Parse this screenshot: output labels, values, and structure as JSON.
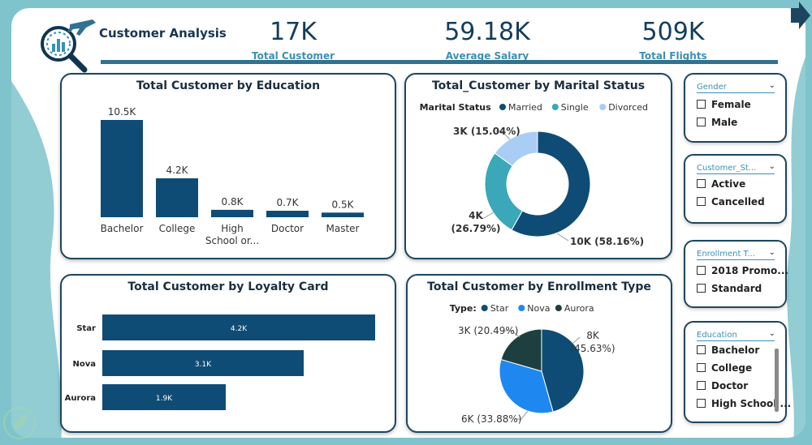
{
  "header": {
    "title": "Customer Analysis",
    "kpis": [
      {
        "value": "17K",
        "label": "Total Customer"
      },
      {
        "value": "59.18K",
        "label": "Average Salary"
      },
      {
        "value": "509K",
        "label": "Total Flights"
      }
    ]
  },
  "colors": {
    "primary": "#0f4c75",
    "married": "#0f4c75",
    "single": "#3aa8b8",
    "divorced": "#a9cdf5",
    "star": "#0f4c75",
    "nova": "#1e88f0",
    "aurora": "#1d3f3f",
    "accent": "#3b90b5"
  },
  "education_chart": {
    "title": "Total Customer by Education",
    "chart_data": {
      "type": "bar",
      "categories": [
        "Bachelor",
        "College",
        "High School or...",
        "Doctor",
        "Master"
      ],
      "category_lines": [
        [
          "Bachelor"
        ],
        [
          "College"
        ],
        [
          "High",
          "School or..."
        ],
        [
          "Doctor"
        ],
        [
          "Master"
        ]
      ],
      "values": [
        10.5,
        4.2,
        0.8,
        0.7,
        0.5
      ],
      "labels": [
        "10.5K",
        "4.2K",
        "0.8K",
        "0.7K",
        "0.5K"
      ],
      "unit": "K"
    }
  },
  "marital_chart": {
    "title": "Total_Customer by Marital Status",
    "legend_title": "Marital Status",
    "chart_data": {
      "type": "pie",
      "donut": true,
      "categories": [
        "Married",
        "Single",
        "Divorced"
      ],
      "values": [
        58.16,
        26.79,
        15.04
      ],
      "labels": [
        "10K (58.16%)",
        [
          "4K",
          "(26.79%)"
        ],
        "3K (15.04%)"
      ]
    }
  },
  "loyalty_chart": {
    "title": "Total Customer by Loyalty Card",
    "chart_data": {
      "type": "bar",
      "orientation": "horizontal",
      "categories": [
        "Star",
        "Nova",
        "Aurora"
      ],
      "values": [
        4.2,
        3.1,
        1.9
      ],
      "labels": [
        "4.2K",
        "3.1K",
        "1.9K"
      ]
    }
  },
  "enrollment_chart": {
    "title": "Total Customer by Enrollment Type",
    "legend_title": "Type:",
    "chart_data": {
      "type": "pie",
      "categories": [
        "Star",
        "Nova",
        "Aurora"
      ],
      "values": [
        45.63,
        33.88,
        20.49
      ],
      "labels": [
        [
          "8K",
          "(45.63%)"
        ],
        "6K (33.88%)",
        "3K (20.49%)"
      ]
    }
  },
  "slicers": [
    {
      "title": "Gender",
      "options": [
        "Female",
        "Male"
      ]
    },
    {
      "title": "Customer_St...",
      "options": [
        "Active",
        "Cancelled"
      ]
    },
    {
      "title": "Enrollment T...",
      "options": [
        "2018 Promo...",
        "Standard"
      ]
    },
    {
      "title": "Education",
      "options": [
        "Bachelor",
        "College",
        "Doctor",
        "High School ..."
      ]
    }
  ]
}
